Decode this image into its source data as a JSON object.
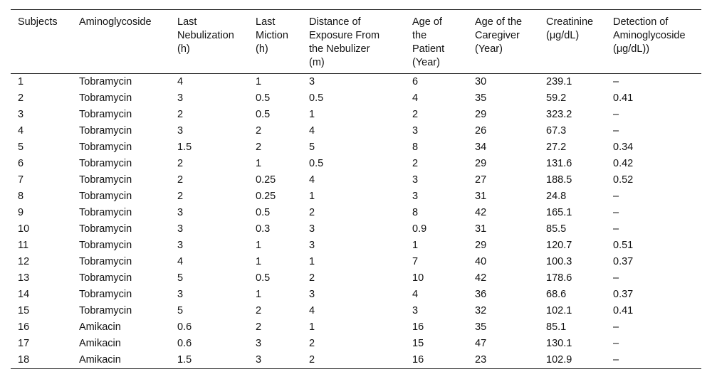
{
  "table": {
    "header": [
      "Subjects",
      "Aminoglycoside",
      "Last\nNebulization\n(h)",
      "Last\nMiction\n(h)",
      "Distance of\nExposure From\nthe Nebulizer\n(m)",
      "Age of\nthe\nPatient\n(Year)",
      "Age of the\nCaregiver\n(Year)",
      "Creatinine\n(μg/dL)",
      "Detection of\nAminoglycoside\n(μg/dL))"
    ],
    "rows": [
      [
        1,
        "Tobramycin",
        4,
        1,
        3,
        6,
        30,
        239.1,
        "–"
      ],
      [
        2,
        "Tobramycin",
        3,
        0.5,
        0.5,
        4,
        35,
        59.2,
        0.41
      ],
      [
        3,
        "Tobramycin",
        2,
        0.5,
        1,
        2,
        29,
        323.2,
        "–"
      ],
      [
        4,
        "Tobramycin",
        3,
        2,
        4,
        3,
        26,
        67.3,
        "–"
      ],
      [
        5,
        "Tobramycin",
        1.5,
        2,
        5,
        8,
        34,
        27.2,
        0.34
      ],
      [
        6,
        "Tobramycin",
        2,
        1,
        0.5,
        2,
        29,
        131.6,
        0.42
      ],
      [
        7,
        "Tobramycin",
        2,
        0.25,
        4,
        3,
        27,
        188.5,
        0.52
      ],
      [
        8,
        "Tobramycin",
        2,
        0.25,
        1,
        3,
        31,
        24.8,
        "–"
      ],
      [
        9,
        "Tobramycin",
        3,
        0.5,
        2,
        8,
        42,
        165.1,
        "–"
      ],
      [
        10,
        "Tobramycin",
        3,
        0.3,
        3,
        0.9,
        31,
        85.5,
        "–"
      ],
      [
        11,
        "Tobramycin",
        3,
        1,
        3,
        1,
        29,
        120.7,
        0.51
      ],
      [
        12,
        "Tobramycin",
        4,
        1,
        1,
        7,
        40,
        100.3,
        0.37
      ],
      [
        13,
        "Tobramycin",
        5,
        0.5,
        2,
        10,
        42,
        178.6,
        "–"
      ],
      [
        14,
        "Tobramycin",
        3,
        1,
        3,
        4,
        36,
        68.6,
        0.37
      ],
      [
        15,
        "Tobramycin",
        5,
        2,
        4,
        3,
        32,
        102.1,
        0.41
      ],
      [
        16,
        "Amikacin",
        0.6,
        2,
        1,
        16,
        35,
        85.1,
        "–"
      ],
      [
        17,
        "Amikacin",
        0.6,
        3,
        2,
        15,
        47,
        130.1,
        "–"
      ],
      [
        18,
        "Amikacin",
        1.5,
        3,
        2,
        16,
        23,
        102.9,
        "–"
      ]
    ]
  }
}
